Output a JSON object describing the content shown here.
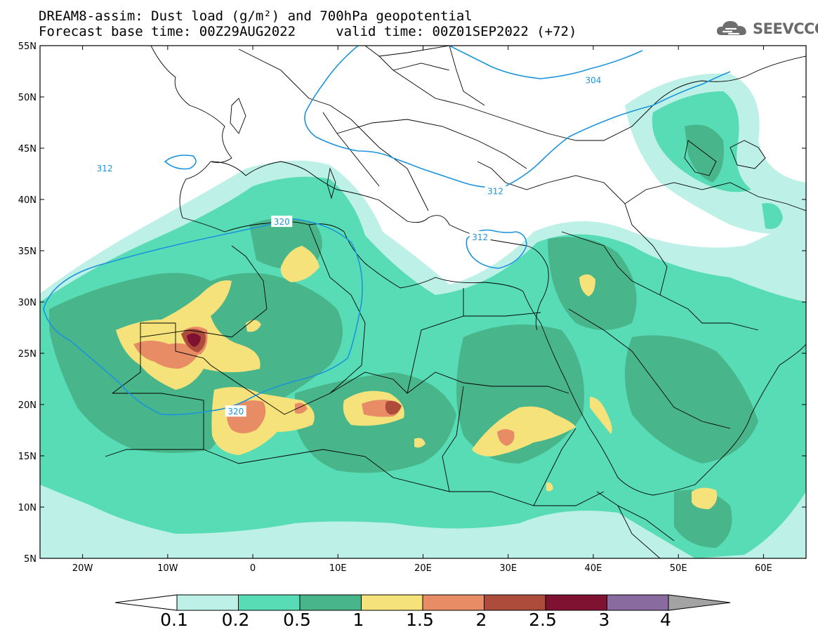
{
  "title": {
    "line1": "DREAM8-assim: Dust load (g/m²) and 700hPa geopotential",
    "line2": "Forecast base time: 00Z29AUG2022     valid time: 00Z01SEP2022 (+72)"
  },
  "logo": {
    "text": "SEEVCCC",
    "icon": "cloud-logo-icon"
  },
  "map": {
    "lon_range": [
      -25,
      65
    ],
    "lat_range": [
      5,
      55
    ],
    "lat_ticks": [
      {
        "value": 55,
        "label": "55N"
      },
      {
        "value": 50,
        "label": "50N"
      },
      {
        "value": 45,
        "label": "45N"
      },
      {
        "value": 40,
        "label": "40N"
      },
      {
        "value": 35,
        "label": "35N"
      },
      {
        "value": 30,
        "label": "30N"
      },
      {
        "value": 25,
        "label": "25N"
      },
      {
        "value": 20,
        "label": "20N"
      },
      {
        "value": 15,
        "label": "15N"
      },
      {
        "value": 10,
        "label": "10N"
      },
      {
        "value": 5,
        "label": "5N"
      }
    ],
    "lon_ticks": [
      {
        "value": -20,
        "label": "20W"
      },
      {
        "value": -10,
        "label": "10W"
      },
      {
        "value": 0,
        "label": "0"
      },
      {
        "value": 10,
        "label": "10E"
      },
      {
        "value": 20,
        "label": "20E"
      },
      {
        "value": 30,
        "label": "30E"
      },
      {
        "value": 40,
        "label": "40E"
      },
      {
        "value": 50,
        "label": "50E"
      },
      {
        "value": 60,
        "label": "60E"
      }
    ],
    "contour_labels": [
      {
        "text": "304",
        "lon": 40.0,
        "lat": 51.6
      },
      {
        "text": "312",
        "lon": -17.4,
        "lat": 43.0
      },
      {
        "text": "312",
        "lon": 28.5,
        "lat": 40.8
      },
      {
        "text": "320",
        "lon": 3.4,
        "lat": 37.8
      },
      {
        "text": "320",
        "lon": -2.0,
        "lat": 19.3
      },
      {
        "text": "312",
        "lon": 26.7,
        "lat": 36.3
      }
    ]
  },
  "colorbar": {
    "labels": [
      "0.1",
      "0.2",
      "0.5",
      "1",
      "1.5",
      "2",
      "2.5",
      "3",
      "4"
    ],
    "colors": [
      "#bdf0e6",
      "#57dcb5",
      "#49b58b",
      "#f6e27a",
      "#e88c66",
      "#ae4c3c",
      "#7e1230",
      "#8a6ba0"
    ],
    "under_color": "#ffffff",
    "over_color": "#a3a3a3"
  },
  "colors": {
    "contour": "#1c94dc",
    "ocean": "#ffffff"
  }
}
